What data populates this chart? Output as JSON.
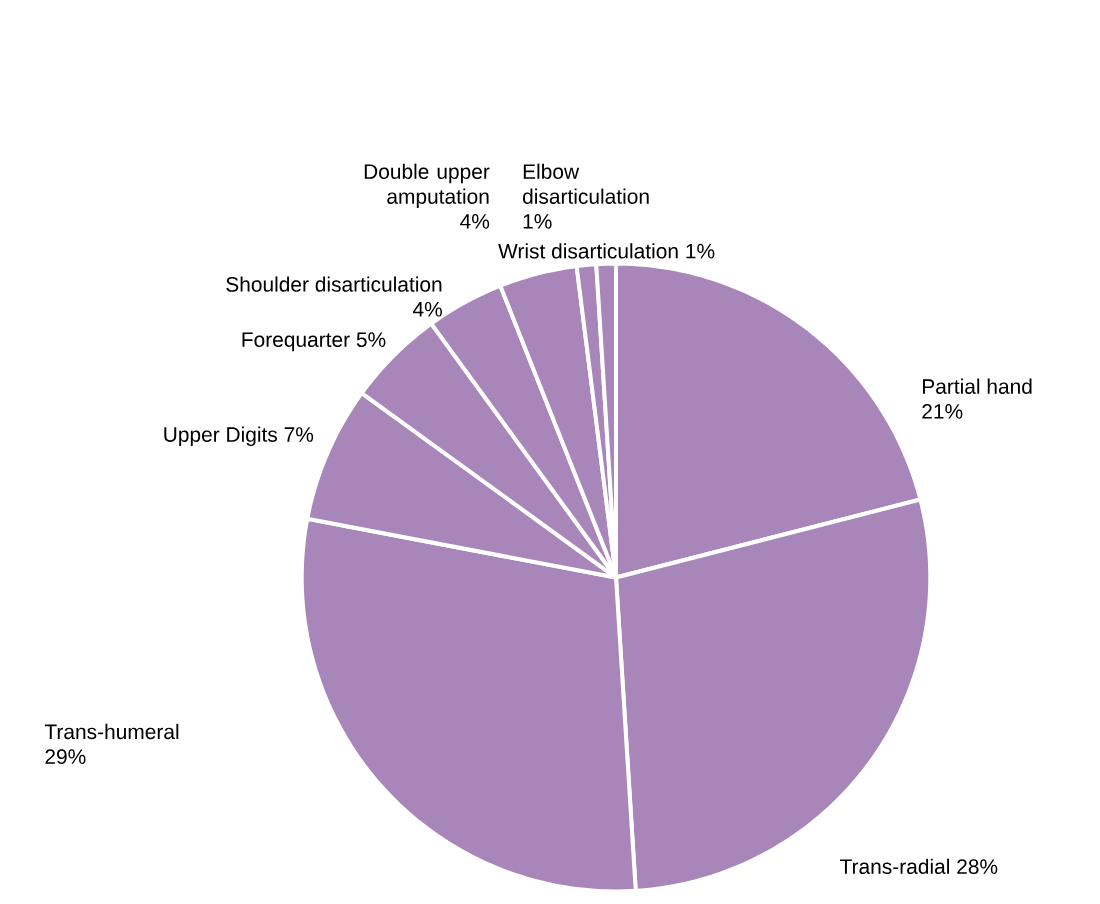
{
  "chart_data": {
    "type": "pie",
    "categories": [
      "Partial hand",
      "Trans-radial",
      "Trans-humeral",
      "Upper Digits",
      "Forequarter",
      "Shoulder disarticulation",
      "Double upper amputation",
      "Elbow disarticulation",
      "Wrist disarticulation"
    ],
    "values": [
      21,
      28,
      29,
      7,
      5,
      4,
      4,
      1,
      1
    ],
    "colors": [
      "#a886b9",
      "#a886b9",
      "#a886b9",
      "#a886b9",
      "#a886b9",
      "#a886b9",
      "#a886b9",
      "#a886b9",
      "#a886b9"
    ],
    "value_labels": [
      "21%",
      "28%",
      "29%",
      "7%",
      "5%",
      "4%",
      "4%",
      "1%",
      "1%"
    ]
  }
}
